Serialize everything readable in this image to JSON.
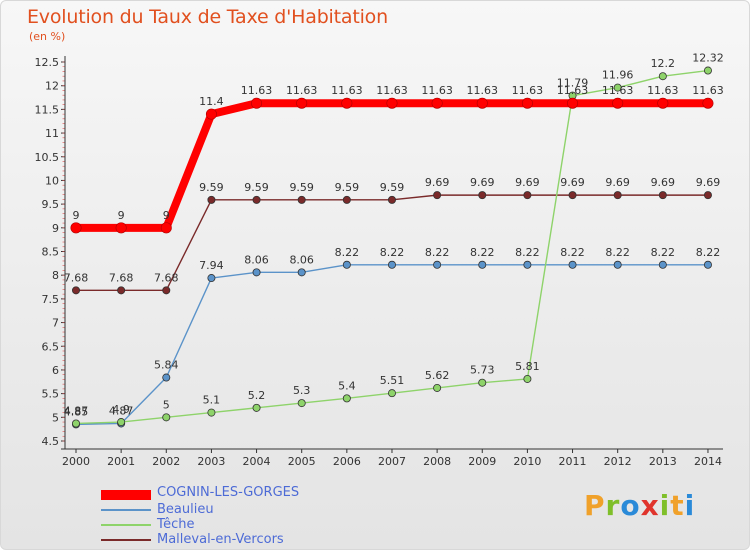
{
  "header": {
    "title": "Evolution du Taux de Taxe d'Habitation",
    "unit": "(en %)"
  },
  "brand": {
    "letters": [
      "P",
      "r",
      "o",
      "x",
      "i",
      "t",
      "i"
    ],
    "colors": [
      "#f0a12a",
      "#7fbf2a",
      "#2a8ad8",
      "#e0342c",
      "#7fbf2a",
      "#f0a12a",
      "#2a8ad8"
    ]
  },
  "chart_data": {
    "type": "line",
    "x": [
      "2000",
      "2001",
      "2002",
      "2003",
      "2004",
      "2005",
      "2006",
      "2007",
      "2008",
      "2009",
      "2010",
      "2011",
      "2012",
      "2013",
      "2014"
    ],
    "ylim": [
      4.5,
      12.5
    ],
    "yticks": [
      "4.5",
      "5",
      "5.5",
      "6",
      "6.5",
      "7",
      "7.5",
      "8",
      "8.5",
      "9",
      "9.5",
      "10",
      "10.5",
      "11",
      "11.5",
      "12",
      "12.5"
    ],
    "grid": false,
    "legend_position": "bottom-left",
    "series": [
      {
        "name": "COGNIN-LES-GORGES",
        "color": "#ff0000",
        "values": [
          9,
          9,
          9,
          11.4,
          11.63,
          11.63,
          11.63,
          11.63,
          11.63,
          11.63,
          11.63,
          11.63,
          11.63,
          11.63,
          11.63
        ],
        "labels": [
          "9",
          "9",
          "9",
          "11.4",
          "11.63",
          "11.63",
          "11.63",
          "11.63",
          "11.63",
          "11.63",
          "11.63",
          "11.63",
          "11.63",
          "11.63",
          "11.63"
        ]
      },
      {
        "name": "Beaulieu",
        "color": "#5b93c9",
        "values": [
          4.85,
          4.87,
          5.84,
          7.94,
          8.06,
          8.06,
          8.22,
          8.22,
          8.22,
          8.22,
          8.22,
          8.22,
          8.22,
          8.22,
          8.22
        ],
        "labels": [
          "4.85",
          "4.87",
          "5.84",
          "7.94",
          "8.06",
          "8.06",
          "8.22",
          "8.22",
          "8.22",
          "8.22",
          "8.22",
          "8.22",
          "8.22",
          "8.22",
          "8.22"
        ]
      },
      {
        "name": "Têche",
        "color": "#8ed36a",
        "values": [
          4.87,
          4.9,
          5,
          5.1,
          5.2,
          5.3,
          5.4,
          5.51,
          5.62,
          5.73,
          5.81,
          11.79,
          11.96,
          12.2,
          12.32
        ],
        "labels": [
          "4.87",
          "4.9",
          "5",
          "5.1",
          "5.2",
          "5.3",
          "5.4",
          "5.51",
          "5.62",
          "5.73",
          "5.81",
          "11.79",
          "11.96",
          "12.2",
          "12.32"
        ]
      },
      {
        "name": "Malleval-en-Vercors",
        "color": "#7a2a2a",
        "values": [
          7.68,
          7.68,
          7.68,
          9.59,
          9.59,
          9.59,
          9.59,
          9.59,
          9.69,
          9.69,
          9.69,
          9.69,
          9.69,
          9.69,
          9.69
        ],
        "labels": [
          "7.68",
          "7.68",
          "7.68",
          "9.59",
          "9.59",
          "9.59",
          "9.59",
          "9.59",
          "9.69",
          "9.69",
          "9.69",
          "9.69",
          "9.69",
          "9.69",
          "9.69"
        ]
      }
    ]
  }
}
